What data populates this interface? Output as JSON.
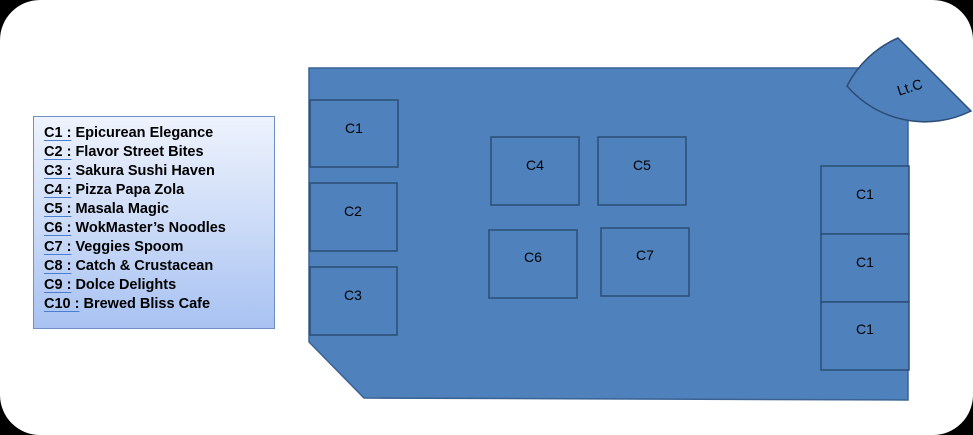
{
  "legend": {
    "items": [
      {
        "code": "C1 :",
        "name": "Epicurean Elegance"
      },
      {
        "code": "C2 :",
        "name": "Flavor Street Bites"
      },
      {
        "code": "C3 :",
        "name": "Sakura Sushi Haven"
      },
      {
        "code": "C4 :",
        "name": "Pizza Papa Zola"
      },
      {
        "code": "C5 :",
        "name": "Masala Magic"
      },
      {
        "code": "C6 :",
        "name": "WokMaster’s Noodles"
      },
      {
        "code": "C7 :",
        "name": "Veggies Spoom"
      },
      {
        "code": "C8 :",
        "name": "Catch & Crustacean"
      },
      {
        "code": "C9 :",
        "name": "Dolce Delights"
      },
      {
        "code": "C10 :",
        "name": "Brewed Bliss Cafe"
      }
    ]
  },
  "floor_plan": {
    "booths": {
      "left_top": "C1",
      "left_middle": "C2",
      "left_bottom": "C3",
      "center_top_left": "C4",
      "center_top_right": "C5",
      "center_bottom_left": "C6",
      "center_bottom_right": "C7",
      "right_top": "C1",
      "right_middle": "C1",
      "right_bottom": "C1"
    },
    "corner_label": "Lt.C"
  },
  "colors": {
    "floor_fill": "#4f81bd",
    "booth_stroke": "#2c4d75",
    "legend_top": "#eef3fd",
    "legend_bottom": "#a8c2f2"
  }
}
